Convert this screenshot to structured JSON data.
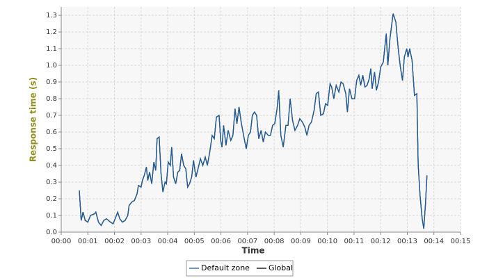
{
  "chart_data": {
    "type": "line",
    "x_label": "Time",
    "y_label": "Response time (s)",
    "x": [
      0.68,
      0.75,
      0.82,
      0.9,
      1.0,
      1.1,
      1.25,
      1.3,
      1.4,
      1.5,
      1.6,
      1.7,
      1.85,
      1.95,
      2.05,
      2.12,
      2.2,
      2.3,
      2.4,
      2.5,
      2.55,
      2.65,
      2.75,
      2.85,
      2.9,
      3.0,
      3.05,
      3.12,
      3.2,
      3.25,
      3.32,
      3.4,
      3.48,
      3.55,
      3.6,
      3.68,
      3.75,
      3.82,
      3.9,
      3.95,
      4.02,
      4.1,
      4.15,
      4.22,
      4.3,
      4.38,
      4.45,
      4.52,
      4.6,
      4.68,
      4.75,
      4.82,
      4.9,
      4.97,
      5.06,
      5.14,
      5.23,
      5.32,
      5.41,
      5.49,
      5.58,
      5.67,
      5.75,
      5.83,
      5.93,
      5.99,
      6.04,
      6.1,
      6.19,
      6.27,
      6.37,
      6.45,
      6.53,
      6.6,
      6.68,
      6.76,
      6.85,
      6.95,
      7.03,
      7.11,
      7.18,
      7.26,
      7.34,
      7.42,
      7.51,
      7.59,
      7.67,
      7.78,
      7.86,
      7.94,
      8.02,
      8.11,
      8.17,
      8.25,
      8.34,
      8.44,
      8.52,
      8.6,
      8.69,
      8.78,
      8.88,
      8.96,
      9.06,
      9.15,
      9.23,
      9.31,
      9.4,
      9.5,
      9.58,
      9.66,
      9.75,
      9.85,
      9.93,
      10.01,
      10.1,
      10.16,
      10.24,
      10.33,
      10.43,
      10.51,
      10.59,
      10.69,
      10.75,
      10.83,
      10.92,
      11.02,
      11.1,
      11.18,
      11.25,
      11.33,
      11.41,
      11.49,
      11.57,
      11.63,
      11.68,
      11.77,
      11.84,
      11.92,
      12.0,
      12.1,
      12.15,
      12.21,
      12.27,
      12.35,
      12.42,
      12.47,
      12.57,
      12.66,
      12.74,
      12.82,
      12.89,
      12.98,
      13.03,
      13.09,
      13.18,
      13.27,
      13.36,
      13.41,
      13.48,
      13.56,
      13.62,
      13.68,
      13.74
    ],
    "series": [
      {
        "name": "Default zone",
        "color": "#1f5c99",
        "values": [
          0.25,
          0.07,
          0.12,
          0.07,
          0.06,
          0.1,
          0.11,
          0.12,
          0.06,
          0.04,
          0.07,
          0.08,
          0.06,
          0.05,
          0.09,
          0.12,
          0.08,
          0.06,
          0.07,
          0.1,
          0.16,
          0.18,
          0.19,
          0.23,
          0.28,
          0.27,
          0.31,
          0.34,
          0.39,
          0.31,
          0.36,
          0.29,
          0.42,
          0.37,
          0.56,
          0.57,
          0.35,
          0.24,
          0.3,
          0.29,
          0.42,
          0.4,
          0.51,
          0.33,
          0.29,
          0.36,
          0.37,
          0.47,
          0.4,
          0.38,
          0.27,
          0.29,
          0.33,
          0.43,
          0.33,
          0.38,
          0.44,
          0.4,
          0.45,
          0.4,
          0.48,
          0.58,
          0.56,
          0.69,
          0.7,
          0.55,
          0.51,
          0.64,
          0.52,
          0.61,
          0.55,
          0.58,
          0.74,
          0.65,
          0.75,
          0.66,
          0.58,
          0.5,
          0.58,
          0.6,
          0.7,
          0.72,
          0.7,
          0.56,
          0.61,
          0.54,
          0.6,
          0.58,
          0.58,
          0.64,
          0.65,
          0.74,
          0.85,
          0.58,
          0.51,
          0.64,
          0.64,
          0.8,
          0.67,
          0.61,
          0.64,
          0.68,
          0.66,
          0.63,
          0.58,
          0.64,
          0.66,
          0.73,
          0.83,
          0.84,
          0.7,
          0.71,
          0.77,
          0.76,
          0.89,
          0.87,
          0.8,
          0.88,
          0.84,
          0.9,
          0.89,
          0.83,
          0.72,
          0.86,
          0.8,
          0.8,
          0.91,
          0.94,
          0.88,
          0.94,
          0.87,
          0.88,
          0.92,
          0.98,
          0.86,
          0.96,
          0.85,
          0.9,
          0.99,
          1.02,
          1.1,
          1.19,
          1.0,
          1.16,
          1.25,
          1.31,
          1.26,
          1.1,
          0.99,
          0.91,
          1.05,
          1.1,
          1.05,
          1.1,
          1.03,
          0.82,
          0.83,
          0.4,
          0.22,
          0.08,
          0.02,
          0.16,
          0.34
        ]
      },
      {
        "name": "Global",
        "color": "#000000",
        "values": [
          0.25,
          0.07,
          0.12,
          0.07,
          0.06,
          0.1,
          0.11,
          0.12,
          0.06,
          0.04,
          0.07,
          0.08,
          0.06,
          0.05,
          0.09,
          0.12,
          0.08,
          0.06,
          0.07,
          0.1,
          0.16,
          0.18,
          0.19,
          0.23,
          0.28,
          0.27,
          0.31,
          0.34,
          0.39,
          0.31,
          0.36,
          0.29,
          0.42,
          0.37,
          0.56,
          0.57,
          0.35,
          0.24,
          0.3,
          0.29,
          0.42,
          0.4,
          0.51,
          0.33,
          0.29,
          0.36,
          0.37,
          0.47,
          0.4,
          0.38,
          0.27,
          0.29,
          0.33,
          0.43,
          0.33,
          0.38,
          0.44,
          0.4,
          0.45,
          0.4,
          0.48,
          0.58,
          0.56,
          0.69,
          0.7,
          0.55,
          0.51,
          0.64,
          0.52,
          0.61,
          0.55,
          0.58,
          0.74,
          0.65,
          0.75,
          0.66,
          0.58,
          0.5,
          0.58,
          0.6,
          0.7,
          0.72,
          0.7,
          0.56,
          0.61,
          0.54,
          0.6,
          0.58,
          0.58,
          0.64,
          0.65,
          0.74,
          0.85,
          0.58,
          0.51,
          0.64,
          0.64,
          0.8,
          0.67,
          0.61,
          0.64,
          0.68,
          0.66,
          0.63,
          0.58,
          0.64,
          0.66,
          0.73,
          0.83,
          0.84,
          0.7,
          0.71,
          0.77,
          0.76,
          0.89,
          0.87,
          0.8,
          0.88,
          0.84,
          0.9,
          0.89,
          0.83,
          0.72,
          0.86,
          0.8,
          0.8,
          0.91,
          0.94,
          0.88,
          0.94,
          0.87,
          0.88,
          0.92,
          0.98,
          0.86,
          0.96,
          0.85,
          0.9,
          0.99,
          1.02,
          1.1,
          1.19,
          1.0,
          1.16,
          1.25,
          1.31,
          1.26,
          1.1,
          0.99,
          0.91,
          1.05,
          1.1,
          1.05,
          1.1,
          1.03,
          0.82,
          0.83,
          0.4,
          0.22,
          0.08,
          0.02,
          0.16,
          0.34
        ]
      }
    ],
    "xlim": [
      0,
      15
    ],
    "xticks": [
      {
        "value": 0,
        "label": "00:00"
      },
      {
        "value": 1,
        "label": "00:01"
      },
      {
        "value": 2,
        "label": "00:02"
      },
      {
        "value": 3,
        "label": "00:03"
      },
      {
        "value": 4,
        "label": "00:04"
      },
      {
        "value": 5,
        "label": "00:05"
      },
      {
        "value": 6,
        "label": "00:06"
      },
      {
        "value": 7,
        "label": "00:07"
      },
      {
        "value": 8,
        "label": "00:08"
      },
      {
        "value": 9,
        "label": "00:09"
      },
      {
        "value": 10,
        "label": "00:10"
      },
      {
        "value": 11,
        "label": "00:11"
      },
      {
        "value": 12,
        "label": "00:12"
      },
      {
        "value": 13,
        "label": "00:13"
      },
      {
        "value": 14,
        "label": "00:14"
      },
      {
        "value": 15,
        "label": "00:15"
      }
    ],
    "ylim": [
      0,
      1.35
    ],
    "yticks": [
      {
        "value": 0,
        "label": "0.0"
      },
      0.1,
      0.2,
      0.3,
      0.4,
      0.5,
      0.6,
      0.7,
      0.8,
      0.9,
      {
        "value": 1,
        "label": "1.0"
      },
      1.1,
      1.2,
      1.3
    ],
    "grid": true,
    "legend": "bottom"
  }
}
